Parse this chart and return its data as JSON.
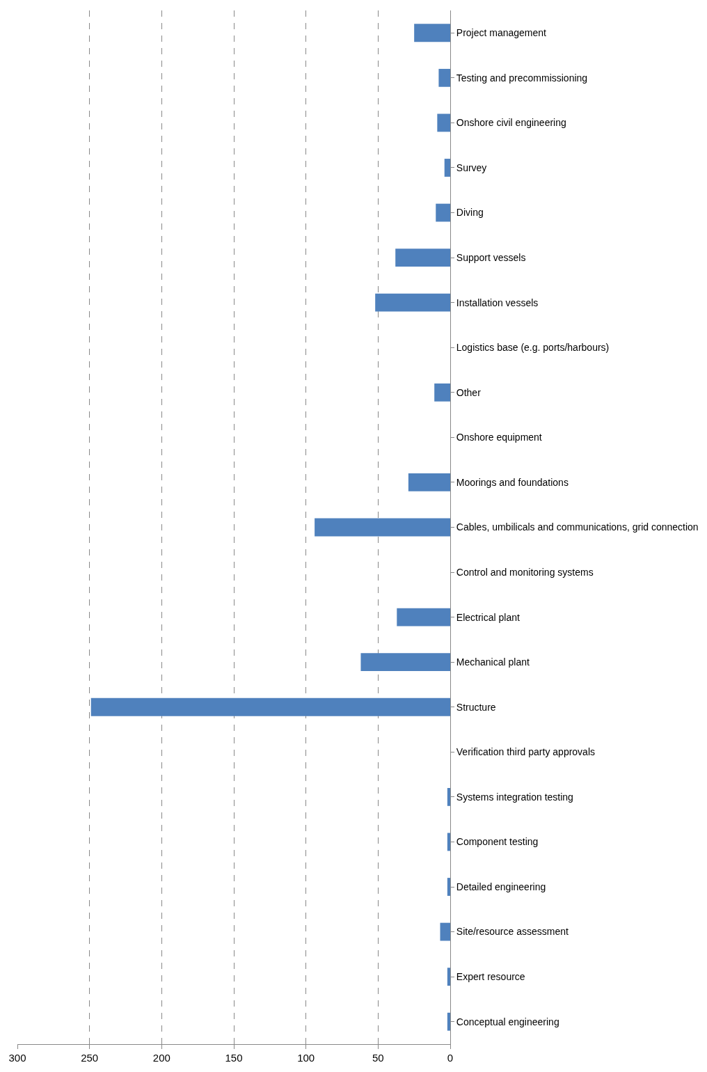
{
  "chart_data": {
    "type": "bar",
    "orientation": "horizontal",
    "categories": [
      "Project management",
      "Testing and precommissioning",
      "Onshore civil engineering",
      "Survey",
      "Diving",
      "Support vessels",
      "Installation vessels",
      "Logistics base (e.g. ports/harbours)",
      "Other",
      "Onshore equipment",
      "Moorings and foundations",
      "Cables, umbilicals and communications, grid connection",
      "Control and monitoring systems",
      "Electrical plant",
      "Mechanical plant",
      "Structure",
      "Verification third party approvals",
      "Systems integration testing",
      "Component testing",
      "Detailed engineering",
      "Site/resource assessment",
      "Expert resource",
      "Conceptual engineering"
    ],
    "values": [
      25,
      8,
      9,
      4,
      10,
      38,
      52,
      0,
      11,
      0,
      29,
      94,
      0,
      37,
      62,
      249,
      0,
      2,
      2,
      2,
      7,
      2,
      2
    ],
    "color": "#4f81bd",
    "xlim": [
      300,
      0
    ],
    "xticks": [
      300,
      250,
      200,
      150,
      100,
      50,
      0
    ],
    "grid": "x"
  }
}
